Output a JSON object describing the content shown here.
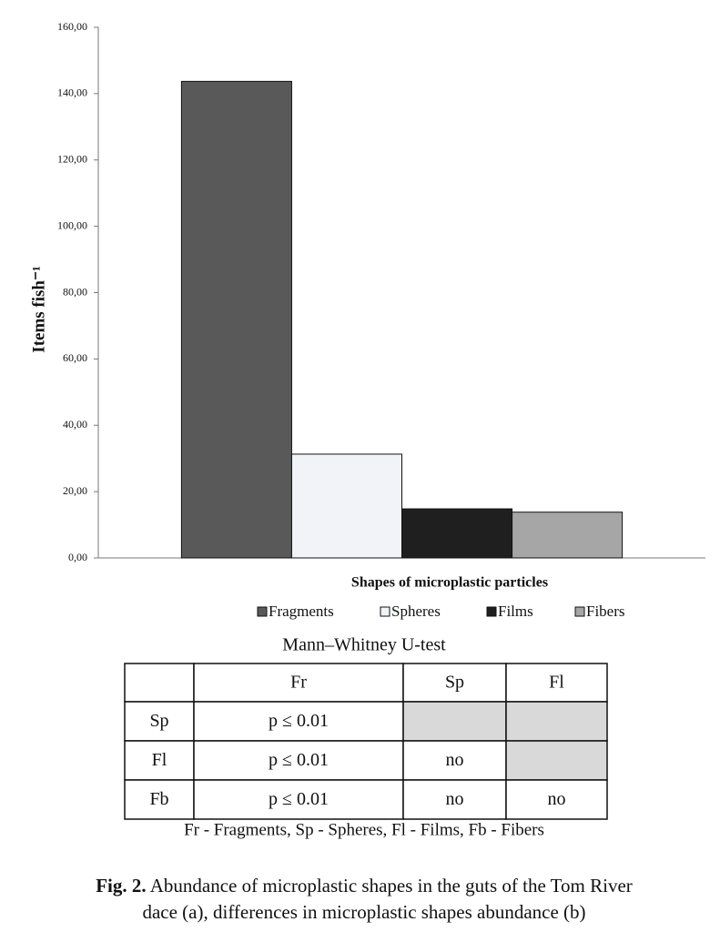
{
  "chart_data": {
    "type": "bar",
    "y_label": "Items fish⁻¹",
    "x_label": "Shapes of microplastic particles",
    "categories": [
      null
    ],
    "series": [
      {
        "name": "Fragments",
        "color": "#595959",
        "values": [
          143.7
        ]
      },
      {
        "name": "Spheres",
        "color": "#f2f3f8",
        "values": [
          31.3
        ]
      },
      {
        "name": "Films",
        "color": "#1f1f1f",
        "values": [
          14.8
        ]
      },
      {
        "name": "Fibers",
        "color": "#a6a6a6",
        "values": [
          13.8
        ]
      }
    ],
    "ylim": [
      0,
      160
    ],
    "yticks": [
      {
        "value": 0,
        "label": "0,00"
      },
      {
        "value": 20,
        "label": "20,00"
      },
      {
        "value": 40,
        "label": "40,00"
      },
      {
        "value": 60,
        "label": "60,00"
      },
      {
        "value": 80,
        "label": "80,00"
      },
      {
        "value": 100,
        "label": "100,00"
      },
      {
        "value": 120,
        "label": "120,00"
      },
      {
        "value": 140,
        "label": "140,00"
      },
      {
        "value": 160,
        "label": "160,00"
      }
    ],
    "legend": "bottom",
    "grid": false
  },
  "table": {
    "title": "Mann–Whitney U-test",
    "rows": [
      [
        null,
        "Fr",
        "Sp",
        "Fl"
      ],
      [
        "Sp",
        "p ≤ 0.01",
        null,
        null
      ],
      [
        "Fl",
        "p ≤ 0.01",
        "no",
        null
      ],
      [
        "Fb",
        "p ≤ 0.01",
        "no",
        "no"
      ]
    ],
    "note": "Fr - Fragments, Sp - Spheres, Fl - Films, Fb - Fibers"
  },
  "caption": {
    "label": "Fig. 2.",
    "lines": [
      "Abundance of microplastic shapes in the guts of the Tom River",
      "dace (a), differences in microplastic shapes abundance (b)"
    ]
  }
}
